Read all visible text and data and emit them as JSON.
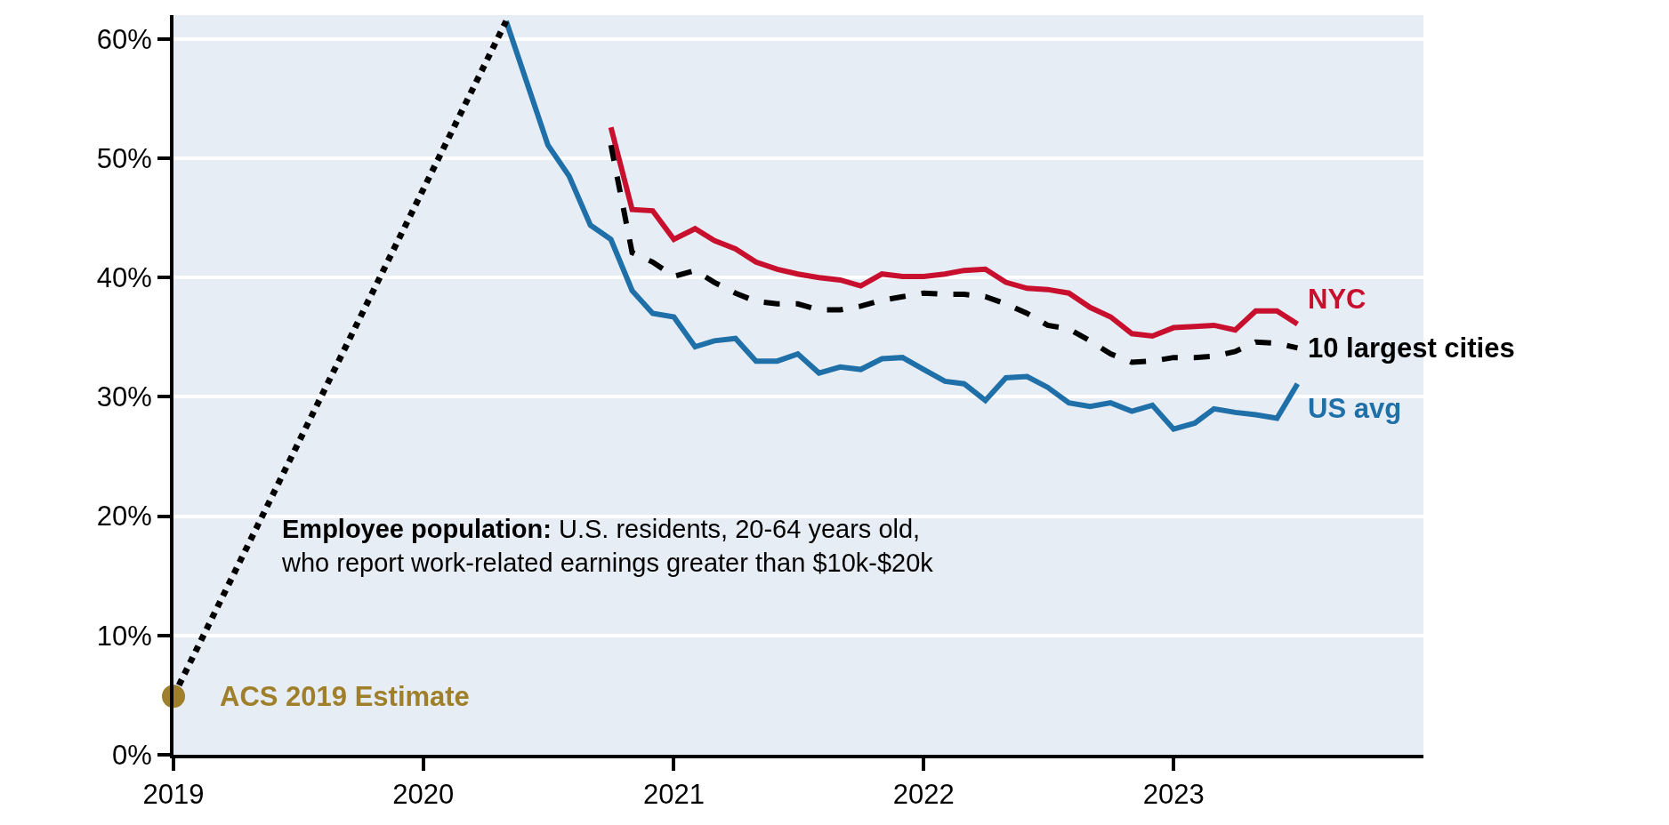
{
  "chart_data": {
    "type": "line",
    "xlim": [
      "2019-01-01",
      "2024-01-01"
    ],
    "xticks": [
      {
        "value": "2019-01-01",
        "label": "2019"
      },
      {
        "value": "2020-01-01",
        "label": "2020"
      },
      {
        "value": "2021-01-01",
        "label": "2021"
      },
      {
        "value": "2022-01-01",
        "label": "2022"
      },
      {
        "value": "2023-01-01",
        "label": "2023"
      }
    ],
    "ylim": [
      0,
      62
    ],
    "yticks": [
      {
        "value": 0,
        "label": "0%"
      },
      {
        "value": 10,
        "label": "10%"
      },
      {
        "value": 20,
        "label": "20%"
      },
      {
        "value": 30,
        "label": "30%"
      },
      {
        "value": 40,
        "label": "40%"
      },
      {
        "value": 50,
        "label": "50%"
      },
      {
        "value": 60,
        "label": "60%"
      }
    ],
    "grid": "y",
    "legend": false,
    "series": [
      {
        "name": "NYC",
        "color": "#c8102e",
        "line_style": "solid",
        "x": [
          "2020-10",
          "2020-11",
          "2020-12",
          "2021-01",
          "2021-02",
          "2021-03",
          "2021-04",
          "2021-05",
          "2021-06",
          "2021-07",
          "2021-08",
          "2021-09",
          "2021-10",
          "2021-11",
          "2021-12",
          "2022-01",
          "2022-02",
          "2022-03",
          "2022-04",
          "2022-05",
          "2022-06",
          "2022-07",
          "2022-08",
          "2022-09",
          "2022-10",
          "2022-11",
          "2022-12",
          "2023-01",
          "2023-02",
          "2023-03",
          "2023-04",
          "2023-05",
          "2023-06",
          "2023-07"
        ],
        "values": [
          52.6,
          45.7,
          45.6,
          43.2,
          44.1,
          43.1,
          42.4,
          41.3,
          40.7,
          40.3,
          40.0,
          39.8,
          39.3,
          40.3,
          40.1,
          40.1,
          40.3,
          40.6,
          40.7,
          39.6,
          39.1,
          39.0,
          38.7,
          37.5,
          36.7,
          35.3,
          35.1,
          35.8,
          35.9,
          36.0,
          35.6,
          37.2,
          37.2,
          36.1
        ]
      },
      {
        "name": "10 largest cities",
        "color": "#000000",
        "line_style": "dashed",
        "x": [
          "2020-10",
          "2020-11",
          "2020-12",
          "2021-01",
          "2021-02",
          "2021-03",
          "2021-04",
          "2021-05",
          "2021-06",
          "2021-07",
          "2021-08",
          "2021-09",
          "2021-10",
          "2021-11",
          "2021-12",
          "2022-01",
          "2022-02",
          "2022-03",
          "2022-04",
          "2022-05",
          "2022-06",
          "2022-07",
          "2022-08",
          "2022-09",
          "2022-10",
          "2022-11",
          "2022-12",
          "2023-01",
          "2023-02",
          "2023-03",
          "2023-04",
          "2023-05",
          "2023-06",
          "2023-07"
        ],
        "values": [
          51.1,
          42.1,
          41.3,
          40.1,
          40.6,
          39.6,
          38.7,
          38.0,
          37.8,
          37.8,
          37.3,
          37.3,
          37.6,
          38.1,
          38.4,
          38.7,
          38.6,
          38.6,
          38.4,
          37.8,
          37.0,
          36.0,
          35.7,
          34.7,
          33.6,
          32.9,
          33.0,
          33.3,
          33.3,
          33.4,
          33.8,
          34.6,
          34.5,
          34.1
        ]
      },
      {
        "name": "US avg",
        "color": "#1f6fa8",
        "line_style": "solid",
        "x": [
          "2020-05",
          "2020-07",
          "2020-08",
          "2020-09",
          "2020-10",
          "2020-11",
          "2020-12",
          "2021-01",
          "2021-02",
          "2021-03",
          "2021-04",
          "2021-05",
          "2021-06",
          "2021-07",
          "2021-08",
          "2021-09",
          "2021-10",
          "2021-11",
          "2021-12",
          "2022-01",
          "2022-02",
          "2022-03",
          "2022-04",
          "2022-05",
          "2022-06",
          "2022-07",
          "2022-08",
          "2022-09",
          "2022-10",
          "2022-11",
          "2022-12",
          "2023-01",
          "2023-02",
          "2023-03",
          "2023-04",
          "2023-05",
          "2023-06",
          "2023-07"
        ],
        "values": [
          61.5,
          51.1,
          48.5,
          44.4,
          43.2,
          38.9,
          37.0,
          36.7,
          34.2,
          34.7,
          34.9,
          33.0,
          33.0,
          33.6,
          32.0,
          32.5,
          32.3,
          33.2,
          33.3,
          32.3,
          31.3,
          31.1,
          29.7,
          31.6,
          31.7,
          30.8,
          29.5,
          29.2,
          29.5,
          28.8,
          29.3,
          27.3,
          27.8,
          29.0,
          28.7,
          28.5,
          28.2,
          31.1
        ]
      },
      {
        "color": "#000000",
        "line_style": "dotted",
        "x": [
          "2019-01-01",
          "2020-05"
        ],
        "values": [
          4.9,
          61.5
        ]
      },
      {
        "type": "scatter",
        "marker": "circle",
        "color": "#a07f2a",
        "x": [
          "2019-01-01"
        ],
        "values": [
          4.9
        ]
      }
    ],
    "annotations": [
      {
        "text": "ACS 2019 Estimate",
        "x": "2019-01-01",
        "y": 4.9
      },
      "Employee population: U.S. residents, 20-64 years old,\nwho report work-related earnings greater than $10k-$20k"
    ]
  }
}
